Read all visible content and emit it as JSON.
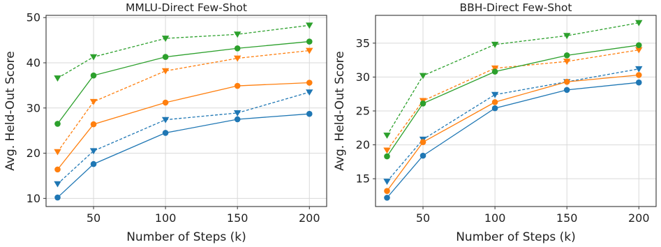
{
  "chart_data": [
    {
      "type": "line",
      "title": "MMLU-Direct Few-Shot",
      "xlabel": "Number of Steps (k)",
      "ylabel": "Avg. Held-Out Score",
      "x": [
        25,
        50,
        100,
        150,
        200
      ],
      "xticks": [
        50,
        100,
        150,
        200
      ],
      "yticks": [
        10,
        20,
        30,
        40,
        50
      ],
      "xlim": [
        17,
        212
      ],
      "ylim": [
        8.2,
        50.5
      ],
      "grid": true,
      "series": [
        {
          "color": "#1f77b4",
          "style": "solid",
          "marker": "circle",
          "values": [
            10.2,
            17.6,
            24.5,
            27.5,
            28.7
          ]
        },
        {
          "color": "#1f77b4",
          "style": "dashed",
          "marker": "triangle-down",
          "values": [
            13.2,
            20.5,
            27.4,
            28.9,
            33.5
          ]
        },
        {
          "color": "#ff7f0e",
          "style": "solid",
          "marker": "circle",
          "values": [
            16.4,
            26.4,
            31.2,
            34.9,
            35.6
          ]
        },
        {
          "color": "#ff7f0e",
          "style": "dashed",
          "marker": "triangle-down",
          "values": [
            20.3,
            31.4,
            38.2,
            41.0,
            42.7
          ]
        },
        {
          "color": "#2ca02c",
          "style": "solid",
          "marker": "circle",
          "values": [
            26.5,
            37.2,
            41.3,
            43.2,
            44.7
          ]
        },
        {
          "color": "#2ca02c",
          "style": "dashed",
          "marker": "triangle-down",
          "values": [
            36.6,
            41.3,
            45.4,
            46.3,
            48.3
          ]
        }
      ]
    },
    {
      "type": "line",
      "title": "BBH-Direct Few-Shot",
      "xlabel": "Number of Steps (k)",
      "ylabel": "Avg. Held-Out Score",
      "x": [
        25,
        50,
        100,
        150,
        200
      ],
      "xticks": [
        50,
        100,
        150,
        200
      ],
      "yticks": [
        15,
        20,
        25,
        30,
        35
      ],
      "xlim": [
        17,
        212
      ],
      "ylim": [
        10.9,
        39.1
      ],
      "grid": true,
      "series": [
        {
          "color": "#1f77b4",
          "style": "solid",
          "marker": "circle",
          "values": [
            12.2,
            18.4,
            25.4,
            28.1,
            29.2
          ]
        },
        {
          "color": "#1f77b4",
          "style": "dashed",
          "marker": "triangle-down",
          "values": [
            14.6,
            20.8,
            27.4,
            29.3,
            31.2
          ]
        },
        {
          "color": "#ff7f0e",
          "style": "solid",
          "marker": "circle",
          "values": [
            13.2,
            20.4,
            26.3,
            29.3,
            30.3
          ]
        },
        {
          "color": "#ff7f0e",
          "style": "dashed",
          "marker": "triangle-down",
          "values": [
            19.2,
            26.5,
            31.3,
            32.3,
            34.0
          ]
        },
        {
          "color": "#2ca02c",
          "style": "solid",
          "marker": "circle",
          "values": [
            18.3,
            26.1,
            30.8,
            33.2,
            34.7
          ]
        },
        {
          "color": "#2ca02c",
          "style": "dashed",
          "marker": "triangle-down",
          "values": [
            21.4,
            30.2,
            34.8,
            36.1,
            38.0
          ]
        }
      ]
    }
  ]
}
